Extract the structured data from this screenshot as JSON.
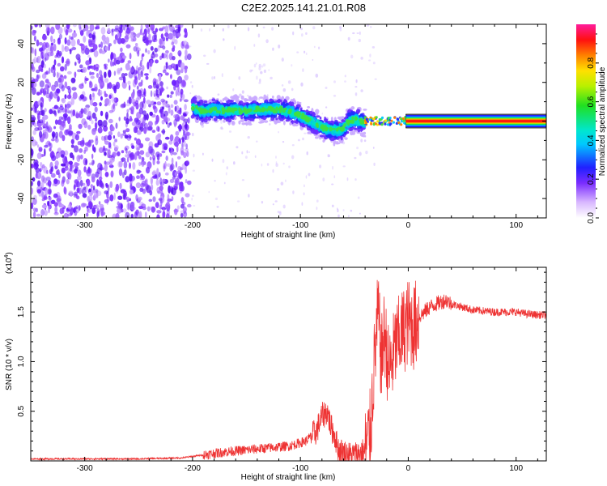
{
  "title": "C2E2.2025.141.21.01.R08",
  "chart_data": [
    {
      "type": "heatmap",
      "xlabel": "Height of straight line (km)",
      "ylabel": "Frequency (Hz)",
      "xlim": [
        -350,
        128
      ],
      "ylim": [
        -50,
        50
      ],
      "xticks": [
        -300,
        -200,
        -100,
        0,
        100
      ],
      "yticks": [
        -40,
        -20,
        0,
        20,
        40
      ],
      "colorbar": {
        "label": "Normalized spectral amplitude",
        "range": [
          0,
          1
        ],
        "ticks": [
          "0.0",
          "0.2",
          "0.4",
          "0.6",
          "0.8"
        ]
      },
      "ridge": {
        "x": [
          -200,
          -190,
          -180,
          -170,
          -160,
          -150,
          -140,
          -130,
          -120,
          -110,
          -100,
          -90,
          -80,
          -70,
          -60,
          -55,
          -50,
          -45,
          -40,
          -35,
          -30,
          -25,
          -20,
          -10,
          0,
          20,
          60,
          128
        ],
        "y": [
          7,
          5,
          6,
          5,
          6,
          5,
          6,
          6,
          6,
          5,
          3,
          0,
          -3,
          -5,
          -4,
          0,
          1,
          0,
          -1,
          0,
          1,
          0,
          0,
          0,
          0,
          0,
          0,
          0
        ]
      }
    },
    {
      "type": "line",
      "xlabel": "Height of straight line (km)",
      "ylabel": "SNR (10 * v/v)",
      "y_multiplier": "(x10",
      "y_exponent": "4",
      "y_multiplier_close": ")",
      "xlim": [
        -350,
        128
      ],
      "ylim": [
        0,
        1.95
      ],
      "xticks": [
        -300,
        -200,
        -100,
        0,
        100
      ],
      "yticks": [
        "0.5",
        "1.0",
        "1.5"
      ],
      "series": [
        {
          "color": "#ee3333",
          "x": [
            -350,
            -300,
            -250,
            -210,
            -190,
            -170,
            -150,
            -130,
            -110,
            -95,
            -85,
            -80,
            -75,
            -72,
            -68,
            -65,
            -60,
            -55,
            -50,
            -45,
            -40,
            -35,
            -32,
            -30,
            -28,
            -25,
            -22,
            -20,
            -18,
            -15,
            -12,
            -10,
            -5,
            0,
            5,
            10,
            20,
            30,
            35,
            40,
            50,
            60,
            80,
            100,
            110,
            120,
            128
          ],
          "y": [
            0.02,
            0.02,
            0.02,
            0.03,
            0.06,
            0.09,
            0.11,
            0.13,
            0.15,
            0.2,
            0.3,
            0.45,
            0.5,
            0.35,
            0.25,
            0.12,
            0.08,
            0.06,
            0.06,
            0.08,
            0.1,
            0.3,
            0.9,
            1.2,
            1.5,
            1.0,
            1.3,
            1.1,
            0.9,
            1.0,
            1.15,
            1.2,
            1.3,
            1.4,
            1.35,
            1.45,
            1.55,
            1.6,
            1.62,
            1.58,
            1.55,
            1.52,
            1.5,
            1.5,
            1.48,
            1.47,
            1.47
          ]
        }
      ]
    }
  ]
}
